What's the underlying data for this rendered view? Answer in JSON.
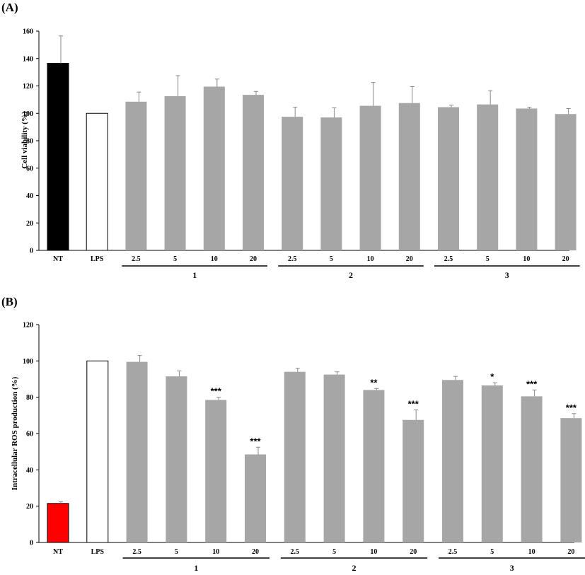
{
  "chart_data": [
    {
      "type": "bar",
      "panel": "(A)",
      "ylabel": "Cell viability (%)",
      "ylim": [
        0,
        160
      ],
      "yticks": [
        0,
        20,
        40,
        60,
        80,
        100,
        120,
        140,
        160
      ],
      "categories": [
        "NT",
        "LPS",
        "2.5",
        "5",
        "10",
        "20",
        "2.5",
        "5",
        "10",
        "20",
        "2.5",
        "5",
        "10",
        "20"
      ],
      "values": [
        136.5,
        100,
        108.5,
        112.5,
        119.5,
        113.5,
        97.5,
        97,
        105.5,
        107.5,
        104.5,
        106.5,
        103.5,
        99.5
      ],
      "errors": [
        20,
        0,
        7,
        15,
        5.5,
        2.5,
        7,
        7,
        17,
        12,
        1.5,
        10,
        1,
        4
      ],
      "significance": [
        "",
        "",
        "",
        "",
        "",
        "",
        "",
        "",
        "",
        "",
        "",
        "",
        "",
        ""
      ],
      "groups": [
        {
          "label": "1",
          "start": 2,
          "end": 5
        },
        {
          "label": "2",
          "start": 6,
          "end": 9
        },
        {
          "label": "3",
          "start": 10,
          "end": 13
        }
      ],
      "colors": {
        "NT": "#000000",
        "LPS": "#ffffff",
        "treated": "#a6a6a6"
      },
      "grid": false
    },
    {
      "type": "bar",
      "panel": "(B)",
      "ylabel": "Intracellular ROS production (%)",
      "ylim": [
        0,
        120
      ],
      "yticks": [
        0,
        20,
        40,
        60,
        80,
        100,
        120
      ],
      "categories": [
        "NT",
        "LPS",
        "2.5",
        "5",
        "10",
        "20",
        "2.5",
        "5",
        "10",
        "20",
        "2.5",
        "5",
        "10",
        "20"
      ],
      "values": [
        21.5,
        100,
        99.5,
        91.5,
        78.5,
        48.5,
        94,
        92.5,
        84,
        67.5,
        89.5,
        86.5,
        80.5,
        68.5
      ],
      "errors": [
        1,
        0,
        3.5,
        3,
        1.5,
        4,
        2,
        1.5,
        0.8,
        5.5,
        2,
        1.5,
        3.5,
        2.5
      ],
      "significance": [
        "",
        "",
        "",
        "",
        "***",
        "***",
        "",
        "",
        "**",
        "***",
        "",
        "*",
        "***",
        "***"
      ],
      "groups": [
        {
          "label": "1",
          "start": 2,
          "end": 5
        },
        {
          "label": "2",
          "start": 6,
          "end": 9
        },
        {
          "label": "3",
          "start": 10,
          "end": 13
        }
      ],
      "colors": {
        "NT": "#ff0000",
        "LPS": "#ffffff",
        "treated": "#a6a6a6"
      },
      "grid": false
    }
  ]
}
